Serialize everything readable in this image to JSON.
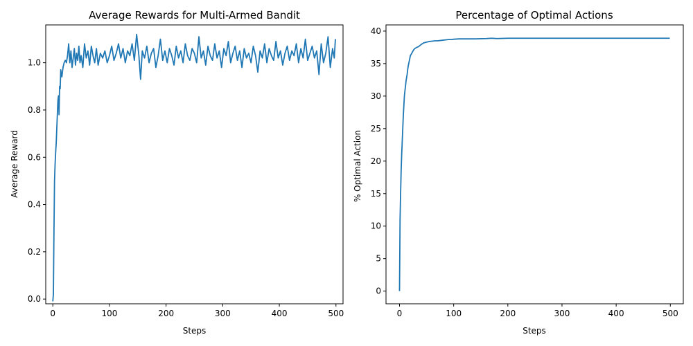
{
  "chart_data": [
    {
      "type": "line",
      "title": "Average Rewards for Multi-Armed Bandit",
      "xlabel": "Steps",
      "ylabel": "Average Reward",
      "xlim": [
        -12.5,
        512.5
      ],
      "ylim": [
        -0.02,
        1.16
      ],
      "xticks": [
        0,
        100,
        200,
        300,
        400,
        500
      ],
      "yticks": [
        0.0,
        0.2,
        0.4,
        0.6,
        0.8,
        1.0
      ],
      "ytick_labels": [
        "0.0",
        "0.2",
        "0.4",
        "0.6",
        "0.8",
        "1.0"
      ],
      "grid": false,
      "series": [
        {
          "color": "#1f77b4",
          "x": [
            0,
            1,
            2,
            3,
            4,
            5,
            6,
            7,
            8,
            9,
            10,
            11,
            12,
            13,
            14,
            15,
            16,
            18,
            20,
            22,
            24,
            26,
            28,
            30,
            32,
            34,
            36,
            38,
            40,
            42,
            44,
            46,
            48,
            50,
            53,
            56,
            59,
            62,
            65,
            68,
            71,
            74,
            77,
            80,
            84,
            88,
            92,
            96,
            100,
            104,
            108,
            112,
            116,
            120,
            124,
            128,
            132,
            136,
            140,
            144,
            148,
            152,
            155,
            158,
            162,
            166,
            170,
            174,
            178,
            182,
            186,
            190,
            194,
            198,
            202,
            206,
            210,
            214,
            218,
            222,
            226,
            230,
            234,
            238,
            242,
            246,
            250,
            254,
            258,
            262,
            266,
            270,
            274,
            278,
            282,
            286,
            290,
            294,
            298,
            302,
            306,
            310,
            314,
            318,
            322,
            326,
            330,
            334,
            338,
            342,
            346,
            350,
            354,
            358,
            362,
            366,
            370,
            374,
            378,
            382,
            386,
            390,
            394,
            398,
            402,
            406,
            410,
            414,
            418,
            422,
            426,
            430,
            434,
            438,
            442,
            446,
            450,
            454,
            458,
            462,
            466,
            470,
            474,
            478,
            482,
            486,
            490,
            494,
            497,
            499
          ],
          "y": [
            -0.01,
            0.02,
            0.28,
            0.5,
            0.57,
            0.62,
            0.66,
            0.72,
            0.78,
            0.84,
            0.86,
            0.78,
            0.9,
            0.89,
            0.97,
            0.95,
            0.94,
            0.98,
            1.0,
            1.01,
            1.0,
            1.03,
            1.08,
            1.0,
            1.05,
            0.98,
            1.02,
            1.06,
            0.99,
            1.04,
            1.01,
            1.07,
            1.0,
            1.03,
            0.98,
            1.08,
            1.02,
            1.05,
            0.99,
            1.07,
            1.03,
            1.0,
            1.06,
            0.99,
            1.04,
            1.02,
            1.05,
            1.0,
            1.03,
            1.07,
            1.01,
            1.04,
            1.08,
            1.02,
            1.06,
            1.0,
            1.05,
            1.03,
            1.08,
            1.01,
            1.12,
            1.03,
            0.93,
            1.05,
            1.02,
            1.07,
            1.0,
            1.04,
            1.06,
            0.98,
            1.03,
            1.1,
            1.01,
            1.05,
            1.0,
            1.06,
            1.03,
            0.99,
            1.07,
            1.02,
            1.05,
            1.0,
            1.08,
            1.03,
            1.01,
            1.06,
            1.04,
            1.0,
            1.11,
            1.02,
            1.05,
            0.99,
            1.07,
            1.03,
            1.01,
            1.08,
            1.02,
            1.05,
            0.98,
            1.06,
            1.03,
            1.09,
            1.0,
            1.04,
            1.07,
            1.01,
            1.05,
            0.98,
            1.06,
            1.02,
            1.04,
            1.0,
            1.07,
            1.03,
            0.96,
            1.05,
            1.02,
            1.08,
            1.0,
            1.06,
            1.03,
            1.01,
            1.09,
            1.02,
            1.05,
            0.99,
            1.04,
            1.07,
            1.01,
            1.05,
            1.03,
            1.08,
            1.0,
            1.06,
            1.02,
            1.1,
            1.01,
            1.04,
            1.07,
            1.02,
            1.05,
            0.95,
            1.08,
            1.0,
            1.04,
            1.11,
            0.98,
            1.06,
            1.02,
            1.1
          ]
        }
      ]
    },
    {
      "type": "line",
      "title": "Percentage of Optimal Actions",
      "xlabel": "Steps",
      "ylabel": "% Optimal Action",
      "xlim": [
        -24.95,
        523.95
      ],
      "ylim": [
        -1.95,
        40.95
      ],
      "xticks": [
        0,
        100,
        200,
        300,
        400,
        500
      ],
      "yticks": [
        0,
        5,
        10,
        15,
        20,
        25,
        30,
        35,
        40
      ],
      "ytick_labels": [
        "0",
        "5",
        "10",
        "15",
        "20",
        "25",
        "30",
        "35",
        "40"
      ],
      "grid": false,
      "series": [
        {
          "color": "#1f77b4",
          "x": [
            0,
            1,
            2,
            3,
            4,
            5,
            6,
            7,
            8,
            9,
            10,
            11,
            12,
            13,
            14,
            15,
            16,
            17,
            18,
            19,
            20,
            22,
            24,
            26,
            28,
            30,
            32,
            35,
            38,
            41,
            45,
            50,
            55,
            60,
            65,
            70,
            75,
            80,
            85,
            90,
            95,
            100,
            110,
            120,
            140,
            160,
            170,
            180,
            200,
            250,
            300,
            350,
            400,
            450,
            499
          ],
          "y": [
            0,
            11,
            15,
            18.5,
            21,
            23,
            25,
            27,
            28.5,
            30,
            30.8,
            31.5,
            32.3,
            32.8,
            33.3,
            34,
            34.6,
            35,
            35.4,
            35.8,
            36.2,
            36.5,
            36.8,
            37.1,
            37.3,
            37.4,
            37.5,
            37.6,
            37.8,
            38,
            38.2,
            38.3,
            38.4,
            38.45,
            38.5,
            38.5,
            38.55,
            38.6,
            38.65,
            38.7,
            38.7,
            38.75,
            38.8,
            38.8,
            38.8,
            38.85,
            38.9,
            38.85,
            38.9,
            38.9,
            38.9,
            38.9,
            38.9,
            38.9,
            38.9
          ]
        }
      ]
    }
  ]
}
